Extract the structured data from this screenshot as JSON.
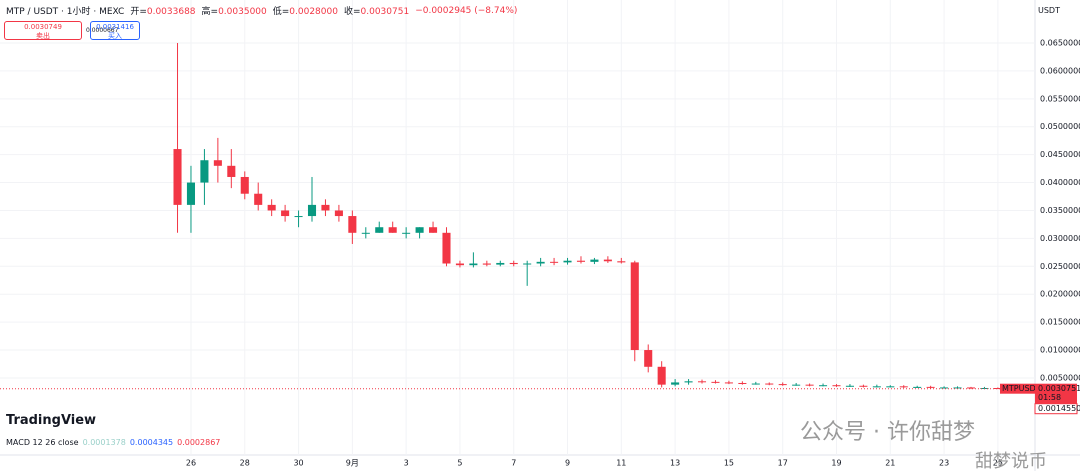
{
  "chart_data": {
    "type": "candlestick",
    "x": [
      -0.5,
      0,
      0.5,
      1,
      1.5,
      2,
      2.5,
      3,
      3.5,
      4,
      4.5,
      5,
      5.5,
      6,
      6.5,
      7,
      7.5,
      8,
      8.5,
      9,
      9.5,
      10,
      10.5,
      11,
      11.5,
      12,
      12.5,
      13,
      13.5,
      14,
      14.5,
      15,
      15.5,
      16,
      16.5,
      17,
      17.5,
      18,
      18.5,
      19,
      19.5,
      20,
      20.5,
      21,
      21.5,
      22,
      22.5,
      23,
      23.5,
      24,
      24.5,
      25,
      25.5,
      26,
      26.5,
      27,
      27.5,
      28,
      28.5,
      29,
      29.5,
      30,
      30.5,
      31
    ],
    "open": [
      0.046,
      0.036,
      0.04,
      0.044,
      0.043,
      0.041,
      0.038,
      0.036,
      0.035,
      0.034,
      0.034,
      0.036,
      0.035,
      0.034,
      0.031,
      0.031,
      0.032,
      0.031,
      0.031,
      0.032,
      0.031,
      0.0255,
      0.0252,
      0.0255,
      0.0253,
      0.0256,
      0.0254,
      0.0255,
      0.0258,
      0.0257,
      0.026,
      0.0258,
      0.0262,
      0.0259,
      0.0257,
      0.01,
      0.007,
      0.0038,
      0.0042,
      0.0044,
      0.0043,
      0.0042,
      0.0041,
      0.004,
      0.004,
      0.0039,
      0.0038,
      0.0038,
      0.0037,
      0.0037,
      0.0036,
      0.0036,
      0.0035,
      0.0035,
      0.0035,
      0.0034,
      0.0034,
      0.0033,
      0.0033,
      0.0033,
      0.0032,
      0.0032,
      0.0031,
      0.0031
    ],
    "high": [
      0.065,
      0.043,
      0.046,
      0.048,
      0.046,
      0.042,
      0.04,
      0.037,
      0.036,
      0.035,
      0.041,
      0.037,
      0.036,
      0.035,
      0.032,
      0.033,
      0.033,
      0.032,
      0.032,
      0.033,
      0.032,
      0.026,
      0.0275,
      0.026,
      0.026,
      0.026,
      0.026,
      0.0265,
      0.0265,
      0.0265,
      0.0268,
      0.0265,
      0.0268,
      0.0265,
      0.026,
      0.011,
      0.008,
      0.0048,
      0.0048,
      0.0047,
      0.0046,
      0.0045,
      0.0044,
      0.0043,
      0.0042,
      0.0042,
      0.0041,
      0.004,
      0.004,
      0.0039,
      0.0039,
      0.0038,
      0.0038,
      0.0037,
      0.0037,
      0.0036,
      0.0036,
      0.0035,
      0.0035,
      0.0034,
      0.0034,
      0.0033,
      0.0033,
      0.0032
    ],
    "low": [
      0.031,
      0.031,
      0.036,
      0.04,
      0.039,
      0.037,
      0.035,
      0.034,
      0.033,
      0.032,
      0.033,
      0.034,
      0.033,
      0.029,
      0.03,
      0.031,
      0.031,
      0.03,
      0.03,
      0.031,
      0.025,
      0.0248,
      0.0248,
      0.025,
      0.025,
      0.025,
      0.0215,
      0.025,
      0.0252,
      0.0253,
      0.0255,
      0.0254,
      0.0256,
      0.0255,
      0.008,
      0.006,
      0.0033,
      0.0035,
      0.0038,
      0.004,
      0.004,
      0.0039,
      0.0038,
      0.0038,
      0.0037,
      0.0036,
      0.0036,
      0.0035,
      0.0035,
      0.0034,
      0.0034,
      0.0033,
      0.0033,
      0.0033,
      0.0032,
      0.0032,
      0.0031,
      0.0031,
      0.0031,
      0.003,
      0.003,
      0.003,
      0.0029,
      0.0029
    ],
    "close": [
      0.036,
      0.04,
      0.044,
      0.043,
      0.041,
      0.038,
      0.036,
      0.035,
      0.034,
      0.034,
      0.036,
      0.035,
      0.034,
      0.031,
      0.031,
      0.032,
      0.031,
      0.031,
      0.032,
      0.031,
      0.0255,
      0.0252,
      0.0255,
      0.0253,
      0.0256,
      0.0254,
      0.0255,
      0.0258,
      0.0257,
      0.026,
      0.0258,
      0.0262,
      0.0259,
      0.0257,
      0.01,
      0.007,
      0.0038,
      0.0042,
      0.0044,
      0.0043,
      0.0042,
      0.0041,
      0.004,
      0.004,
      0.0039,
      0.0038,
      0.0038,
      0.0037,
      0.0037,
      0.0036,
      0.0036,
      0.0035,
      0.0035,
      0.0035,
      0.0034,
      0.0034,
      0.0033,
      0.0033,
      0.0033,
      0.0032,
      0.0032,
      0.0031,
      0.0031,
      0.00308
    ],
    "up_color": "#089981",
    "down_color": "#f23645",
    "xlim": [
      -7.1,
      31.38
    ],
    "xticks": [
      {
        "value": 0,
        "label": "26"
      },
      {
        "value": 2,
        "label": "28"
      },
      {
        "value": 4,
        "label": "30"
      },
      {
        "value": 6,
        "label": "9月"
      },
      {
        "value": 8,
        "label": "3"
      },
      {
        "value": 10,
        "label": "5"
      },
      {
        "value": 12,
        "label": "7"
      },
      {
        "value": 14,
        "label": "9"
      },
      {
        "value": 16,
        "label": "11"
      },
      {
        "value": 18,
        "label": "13"
      },
      {
        "value": 20,
        "label": "15"
      },
      {
        "value": 22,
        "label": "17"
      },
      {
        "value": 24,
        "label": "19"
      },
      {
        "value": 26,
        "label": "21"
      },
      {
        "value": 28,
        "label": "23"
      },
      {
        "value": 30,
        "label": "25"
      }
    ],
    "ylim": [
      -0.0088,
      0.0727
    ],
    "yticks": [
      {
        "value": 0.005,
        "label": "0.0050000"
      },
      {
        "value": 0.01,
        "label": "0.0100000"
      },
      {
        "value": 0.015,
        "label": "0.0150000"
      },
      {
        "value": 0.02,
        "label": "0.0200000"
      },
      {
        "value": 0.025,
        "label": "0.0250000"
      },
      {
        "value": 0.03,
        "label": "0.0300000"
      },
      {
        "value": 0.035,
        "label": "0.0350000"
      },
      {
        "value": 0.04,
        "label": "0.0400000"
      },
      {
        "value": 0.045,
        "label": "0.0450000"
      },
      {
        "value": 0.05,
        "label": "0.0500000"
      },
      {
        "value": 0.055,
        "label": "0.0550000"
      },
      {
        "value": 0.06,
        "label": "0.0600000"
      },
      {
        "value": 0.065,
        "label": "0.0650000"
      }
    ],
    "last_price": 0.0030751,
    "grid": true
  },
  "header": {
    "symbol": "MTP / USDT · 1小时 · MEXC",
    "open_label": "开=",
    "open": "0.0033688",
    "high_label": "高=",
    "high": "0.0035000",
    "low_label": "低=",
    "low": "0.0028000",
    "close_label": "收=",
    "close": "0.0030751",
    "change": "−0.0002945 (−8.74%)"
  },
  "trade": {
    "sell_price": "0.0030749",
    "sell_label": "卖出",
    "spread": "0.0000667",
    "buy_price": "0.0031416",
    "buy_label": "买入"
  },
  "axis_currency": "USDT",
  "price_tag": {
    "symbol": "MTPUSDT",
    "countdown": "01:58",
    "second_price": "0.0014550"
  },
  "indicator": {
    "name": "MACD 12 26 close",
    "values": [
      "0.0001378",
      "0.0004345",
      "0.0002867"
    ]
  },
  "logo": "TradingView",
  "watermark": {
    "account": "公众号 · 许你甜梦",
    "corner": "甜梦说币"
  }
}
